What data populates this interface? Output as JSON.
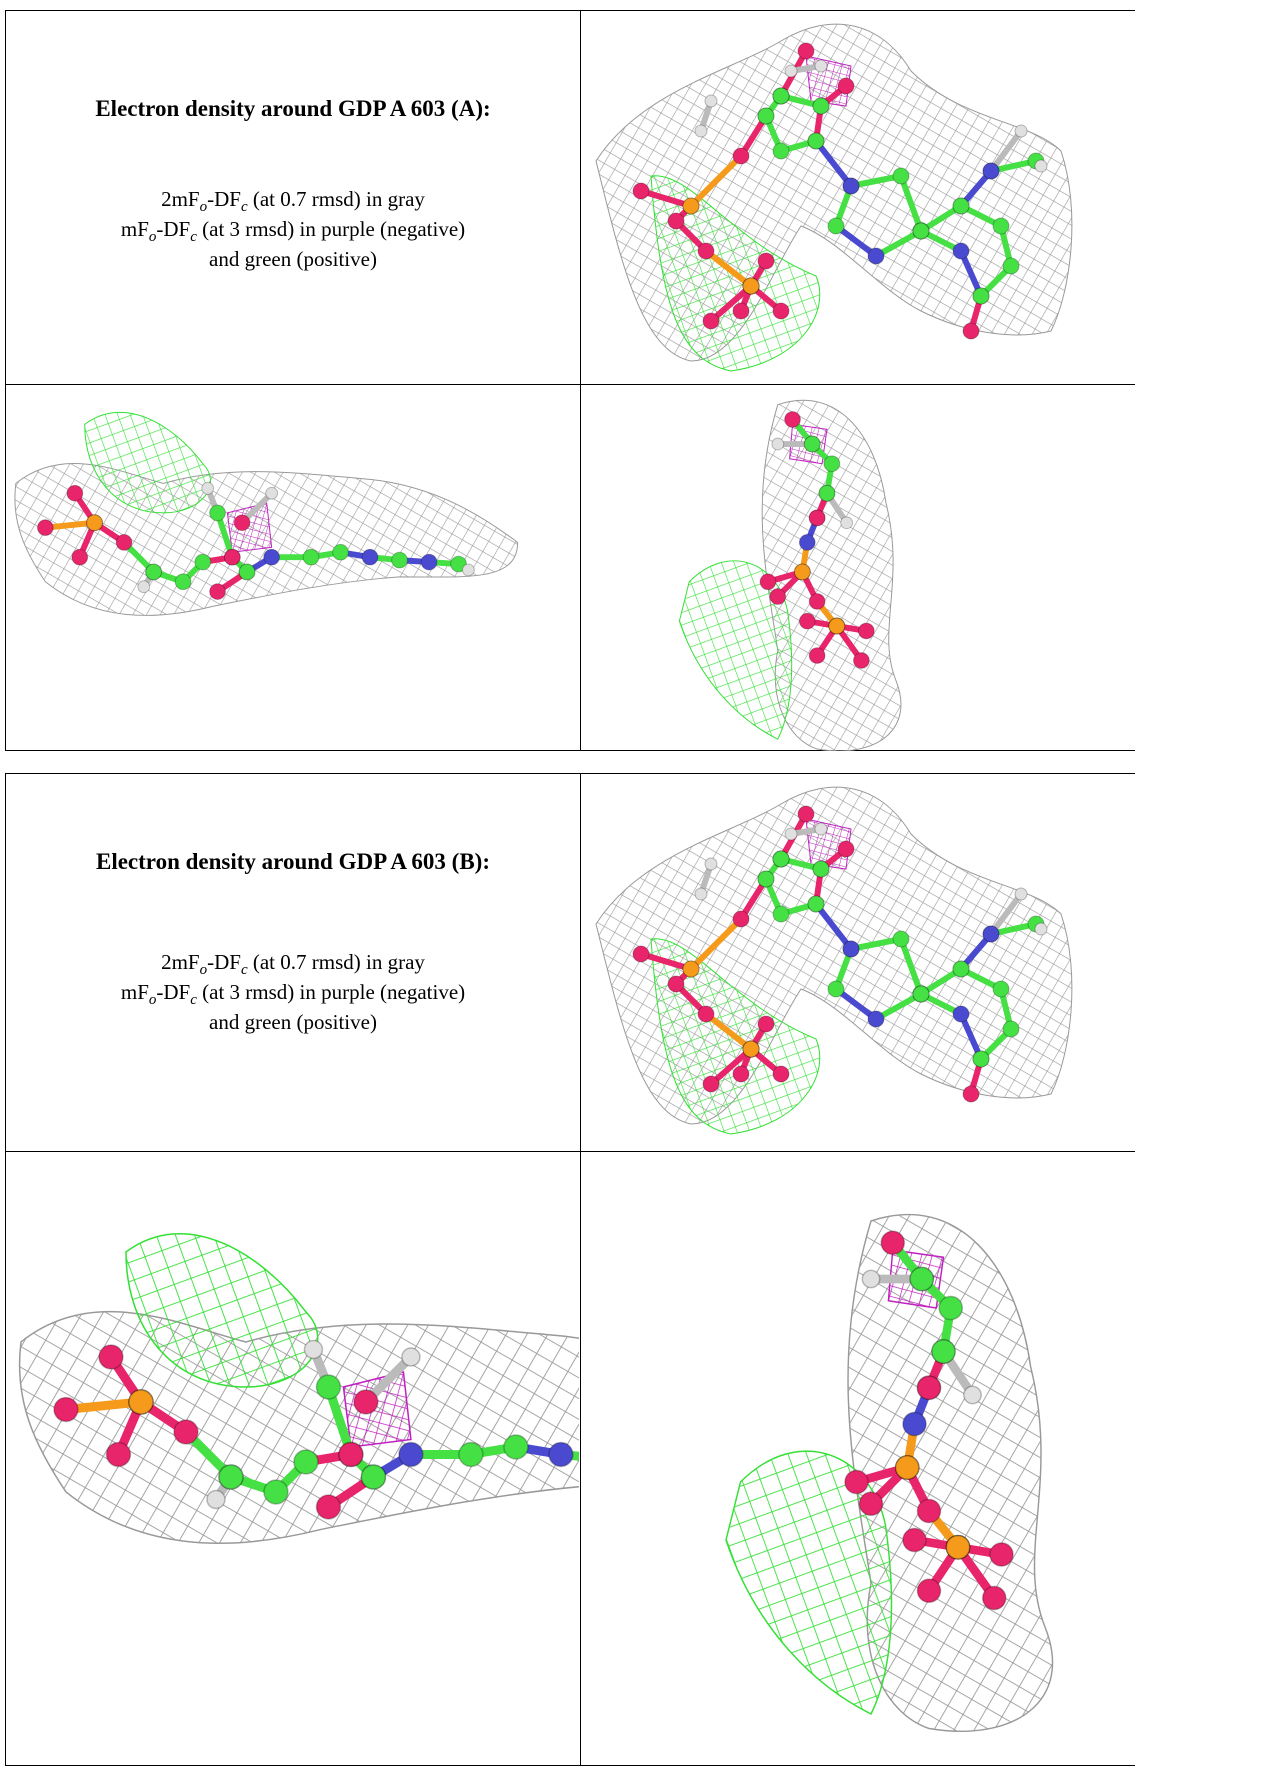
{
  "tables": [
    {
      "title": "Electron density around GDP A 603 (A):",
      "lines": [
        [
          "2mF",
          "o",
          "-DF",
          "c",
          " (at 0.7 rmsd) in gray"
        ],
        [
          "mF",
          "o",
          "-DF",
          "c",
          " (at 3 rmsd) in purple (negative)"
        ],
        [
          "and green (positive)"
        ]
      ]
    },
    {
      "title": "Electron density around GDP A 603 (B):",
      "lines": [
        [
          "2mF",
          "o",
          "-DF",
          "c",
          " (at 0.7 rmsd) in gray"
        ],
        [
          "mF",
          "o",
          "-DF",
          "c",
          " (at 3 rmsd) in purple (negative)"
        ],
        [
          "and green (positive)"
        ]
      ]
    }
  ]
}
